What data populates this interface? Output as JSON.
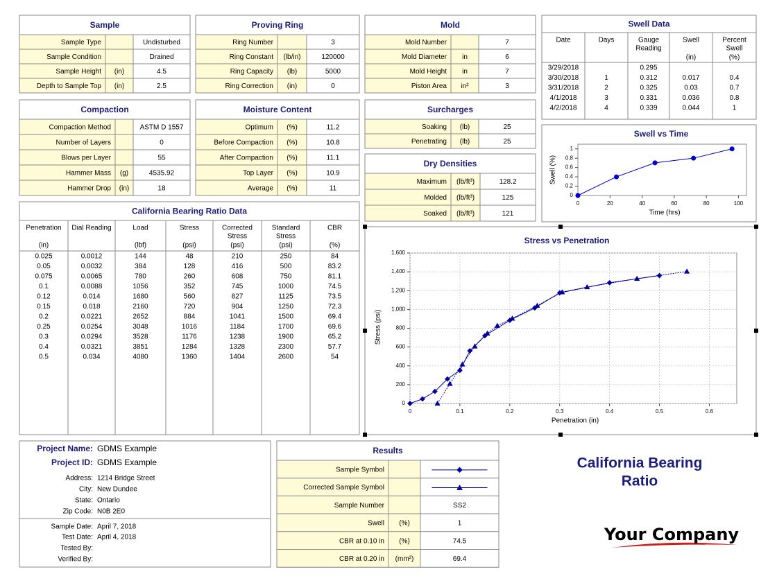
{
  "sample": {
    "title": "Sample",
    "rows": [
      {
        "label": "Sample Type",
        "value": "Undisturbed"
      },
      {
        "label": "Sample Condition",
        "value": "Drained"
      },
      {
        "label": "Sample Height",
        "unit": "(in)",
        "value": "4.5"
      },
      {
        "label": "Depth to Sample Top",
        "unit": "(in)",
        "value": "2.5"
      }
    ]
  },
  "proving_ring": {
    "title": "Proving Ring",
    "rows": [
      {
        "label": "Ring Number",
        "value": "3"
      },
      {
        "label": "Ring Constant",
        "unit": "(lb/in)",
        "value": "120000"
      },
      {
        "label": "Ring Capacity",
        "unit": "(lb)",
        "value": "5000"
      },
      {
        "label": "Ring Correction",
        "unit": "(in)",
        "value": "0"
      }
    ]
  },
  "mold": {
    "title": "Mold",
    "rows": [
      {
        "label": "Mold Number",
        "value": "7"
      },
      {
        "label": "Mold Diameter",
        "unit": "in",
        "value": "6"
      },
      {
        "label": "Mold Height",
        "unit": "in",
        "value": "7"
      },
      {
        "label": "Piston Area",
        "unit": "in²",
        "value": "3"
      }
    ]
  },
  "swell_data": {
    "title": "Swell Data",
    "columns": [
      {
        "label": [
          "Date"
        ]
      },
      {
        "label": [
          "Days"
        ]
      },
      {
        "label": [
          "Gauge",
          "Reading"
        ]
      },
      {
        "label": [
          "Swell"
        ],
        "unit": "(in)"
      },
      {
        "label": [
          "Percent",
          "Swell"
        ],
        "unit": "(%)"
      }
    ],
    "rows": [
      [
        "3/29/2018",
        null,
        "0.295",
        null,
        null
      ],
      [
        "3/30/2018",
        "1",
        "0.312",
        "0.017",
        "0.4"
      ],
      [
        "3/31/2018",
        "2",
        "0.325",
        "0.03",
        "0.7"
      ],
      [
        "4/1/2018",
        "3",
        "0.331",
        "0.036",
        "0.8"
      ],
      [
        "4/2/2018",
        "4",
        "0.339",
        "0.044",
        "1"
      ]
    ]
  },
  "compaction": {
    "title": "Compaction",
    "rows": [
      {
        "label": "Compaction Method",
        "value": "ASTM D 1557"
      },
      {
        "label": "Number of Layers",
        "value": "0"
      },
      {
        "label": "Blows per Layer",
        "value": "55"
      },
      {
        "label": "Hammer Mass",
        "unit": "(g)",
        "value": "4535.92"
      },
      {
        "label": "Hammer Drop",
        "unit": "(in)",
        "value": "18"
      }
    ]
  },
  "moisture_content": {
    "title": "Moisture Content",
    "rows": [
      {
        "label": "Optimum",
        "unit": "(%)",
        "value": "11.2"
      },
      {
        "label": "Before Compaction",
        "unit": "(%)",
        "value": "10.8"
      },
      {
        "label": "After Compaction",
        "unit": "(%)",
        "value": "11.1"
      },
      {
        "label": "Top Layer",
        "unit": "(%)",
        "value": "10.9"
      },
      {
        "label": "Average",
        "unit": "(%)",
        "value": "11"
      }
    ]
  },
  "surcharges": {
    "title": "Surcharges",
    "rows": [
      {
        "label": "Soaking",
        "unit": "(lb)",
        "value": "25"
      },
      {
        "label": "Penetrating",
        "unit": "(lb)",
        "value": "25"
      }
    ]
  },
  "dry_densities": {
    "title": "Dry Densities",
    "rows": [
      {
        "label": "Maximum",
        "unit": "(lb/ft³)",
        "value": "128.2"
      },
      {
        "label": "Molded",
        "unit": "(lb/ft³)",
        "value": "125"
      },
      {
        "label": "Soaked",
        "unit": "(lb/ft³)",
        "value": "121"
      }
    ]
  },
  "cbr_data": {
    "title": "California Bearing Ratio Data",
    "columns": [
      {
        "label": [
          "Penetration"
        ],
        "unit": "(in)"
      },
      {
        "label": [
          "Dial Reading"
        ]
      },
      {
        "label": [
          "Load"
        ],
        "unit": "(lbf)"
      },
      {
        "label": [
          "Stress"
        ],
        "unit": "(psi)"
      },
      {
        "label": [
          "Corrected",
          "Stress"
        ],
        "unit": "(psi)"
      },
      {
        "label": [
          "Standard",
          "Stress"
        ],
        "unit": "(psi)"
      },
      {
        "label": [
          "CBR"
        ],
        "unit": "(%)"
      }
    ],
    "rows": [
      [
        "0.025",
        "0.0012",
        "144",
        "48",
        "210",
        "250",
        "84"
      ],
      [
        "0.05",
        "0.0032",
        "384",
        "128",
        "416",
        "500",
        "83.2"
      ],
      [
        "0.075",
        "0.0065",
        "780",
        "260",
        "608",
        "750",
        "81.1"
      ],
      [
        "0.1",
        "0.0088",
        "1056",
        "352",
        "745",
        "1000",
        "74.5"
      ],
      [
        "0.12",
        "0.014",
        "1680",
        "560",
        "827",
        "1125",
        "73.5"
      ],
      [
        "0.15",
        "0.018",
        "2160",
        "720",
        "904",
        "1250",
        "72.3"
      ],
      [
        "0.2",
        "0.0221",
        "2652",
        "884",
        "1041",
        "1500",
        "69.4"
      ],
      [
        "0.25",
        "0.0254",
        "3048",
        "1016",
        "1184",
        "1700",
        "69.6"
      ],
      [
        "0.3",
        "0.0294",
        "3528",
        "1176",
        "1238",
        "1900",
        "65.2"
      ],
      [
        "0.4",
        "0.0321",
        "3851",
        "1284",
        "1328",
        "2300",
        "57.7"
      ],
      [
        "0.5",
        "0.034",
        "4080",
        "1360",
        "1404",
        "2600",
        "54"
      ]
    ]
  },
  "chart_data": [
    {
      "type": "line",
      "title": "Swell vs Time",
      "x_label": "Time (hrs)",
      "y_label": "Swell (%)",
      "series": [
        {
          "x": [
            0,
            24,
            48,
            72,
            96
          ],
          "values": [
            0,
            0.4,
            0.7,
            0.8,
            1
          ],
          "color": "#0000cc",
          "marker": "circle",
          "line_style": "solid"
        }
      ],
      "xlim": [
        0,
        105
      ],
      "xticks": [
        0,
        20,
        40,
        60,
        80,
        100
      ],
      "ylim": [
        0,
        1.1
      ],
      "yticks": [
        0,
        0.2,
        0.4,
        0.6,
        0.8,
        1
      ],
      "grid": false
    },
    {
      "type": "line",
      "title": "Stress vs Penetration",
      "x_label": "Penetration (in)",
      "y_label": "Stress (psi)",
      "series": [
        {
          "x": [
            0,
            0.025,
            0.05,
            0.075,
            0.1,
            0.12,
            0.15,
            0.2,
            0.25,
            0.3,
            0.4,
            0.5
          ],
          "values": [
            0,
            48,
            128,
            260,
            352,
            560,
            720,
            884,
            1016,
            1176,
            1284,
            1360
          ],
          "color": "#0000a0",
          "marker": "diamond",
          "line_style": "solid"
        },
        {
          "x": [
            0.055,
            0.08,
            0.105,
            0.13,
            0.155,
            0.175,
            0.205,
            0.255,
            0.305,
            0.355,
            0.455,
            0.555
          ],
          "values": [
            0,
            210,
            416,
            608,
            745,
            827,
            904,
            1041,
            1184,
            1238,
            1328,
            1404
          ],
          "color": "#0000a0",
          "marker": "triangle",
          "line_style": "dotted"
        }
      ],
      "xlim": [
        0,
        0.655
      ],
      "xticks": [
        0,
        0.1,
        0.2,
        0.3,
        0.4,
        0.5,
        0.6
      ],
      "ylim": [
        0,
        1600
      ],
      "yticks": [
        0,
        200,
        400,
        600,
        800,
        {
          "value": 1000,
          "label": "1,000"
        },
        {
          "value": 1200,
          "label": "1,200"
        },
        {
          "value": 1400,
          "label": "1,400"
        },
        {
          "value": 1600,
          "label": "1,600"
        }
      ],
      "grid": true
    }
  ],
  "project": {
    "rows": [
      {
        "label": "Project Name:",
        "value": "GDMS Example"
      },
      {
        "label": "Project ID:",
        "value": "GDMS Example"
      },
      {
        "label": "Address:",
        "value": "1214 Bridge Street"
      },
      {
        "label": "City:",
        "value": "New Dundee"
      },
      {
        "label": "State:",
        "value": "Ontario"
      },
      {
        "label": "Zip Code:",
        "value": "N0B 2E0"
      }
    ],
    "dates": [
      {
        "label": "Sample Date:",
        "value": "April 7, 2018"
      },
      {
        "label": "Test Date:",
        "value": "April 4, 2018"
      },
      {
        "label": "Tested By:"
      },
      {
        "label": "Verified By:"
      }
    ]
  },
  "results": {
    "title": "Results",
    "rows": [
      {
        "label": "Sample Symbol",
        "symbol": "diamond"
      },
      {
        "label": "Corrected Sample Symbol",
        "symbol": "triangle"
      },
      {
        "label": "Sample Number",
        "value": "SS2"
      },
      {
        "label": "Swell",
        "unit": "(%)",
        "value": "1"
      },
      {
        "label": "CBR at 0.10 in",
        "unit": "(%)",
        "value": "74.5"
      },
      {
        "label": "CBR at 0.20 in",
        "unit": "(mm²)",
        "value": "69.4"
      }
    ]
  },
  "report_title": [
    "California Bearing",
    "Ratio"
  ],
  "company": "Your Company"
}
